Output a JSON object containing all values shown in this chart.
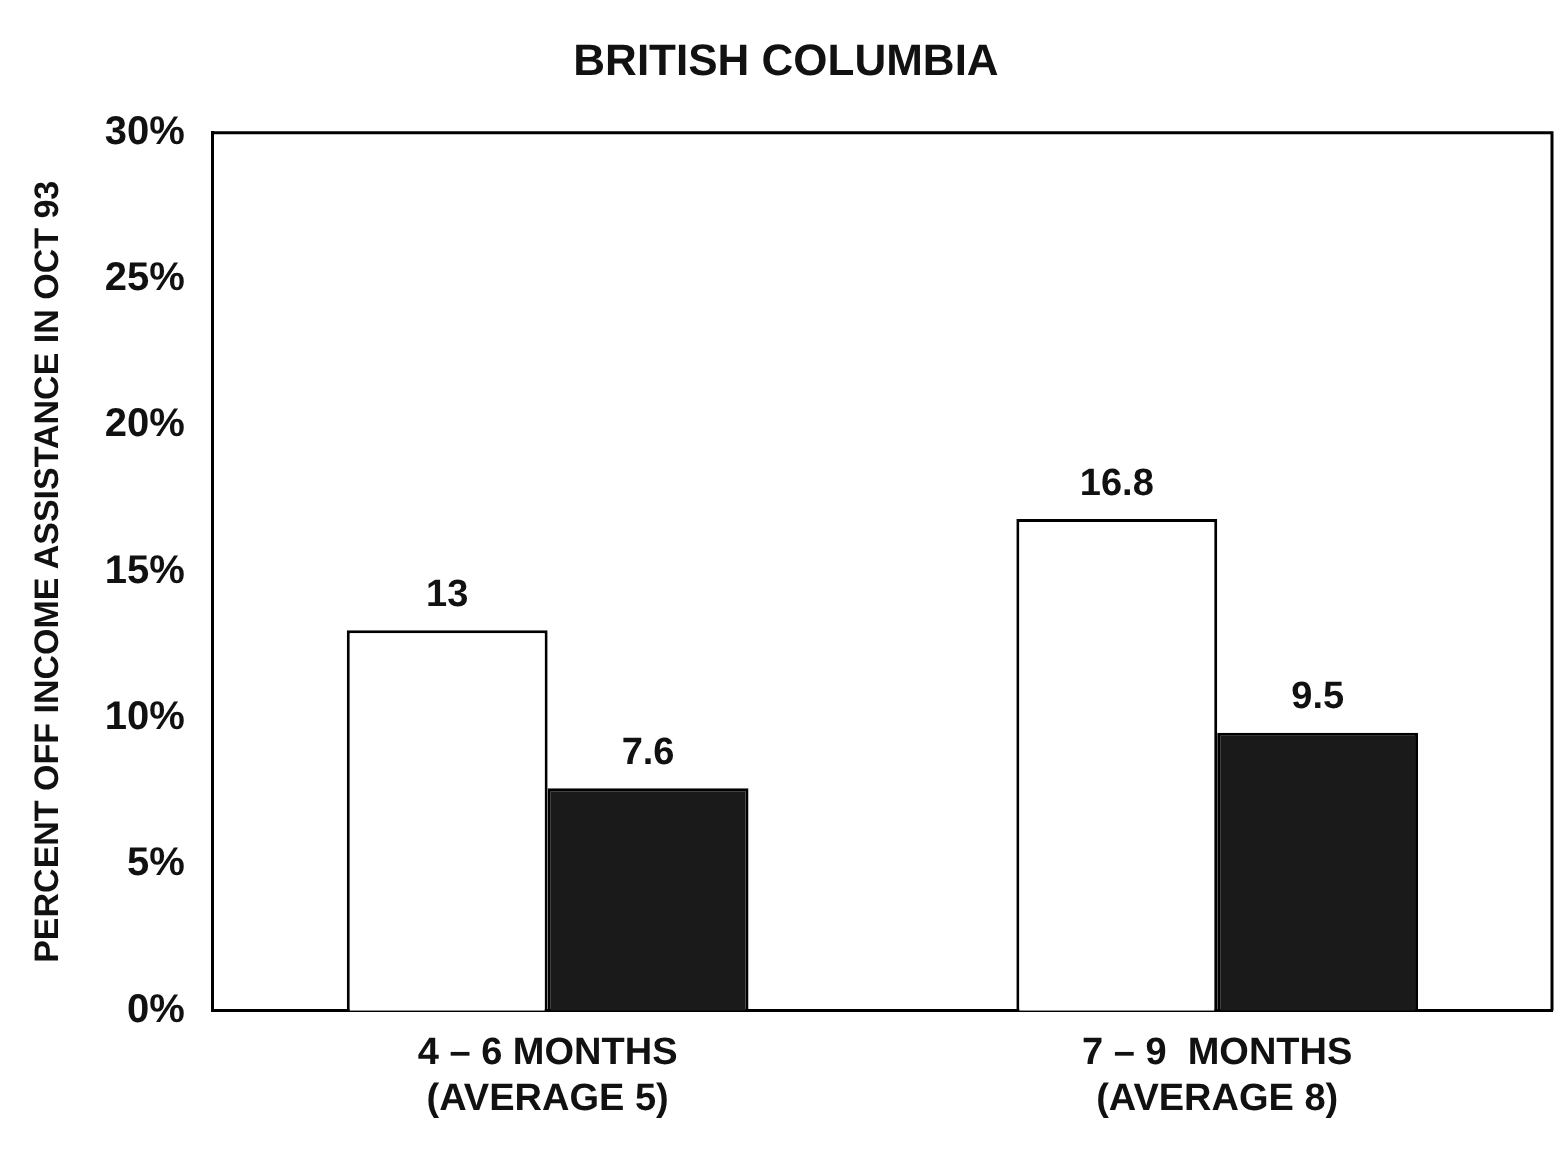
{
  "chart_data": {
    "type": "bar",
    "title": "BRITISH COLUMBIA",
    "ylabel": "PERCENT OFF INCOME ASSISTANCE IN OCT 93",
    "categories": [
      "4 – 6 MONTHS\n(AVERAGE 5)",
      "7 – 9  MONTHS\n(AVERAGE 8)"
    ],
    "series": [
      {
        "color": "#ffffff",
        "values": [
          13,
          16.8
        ]
      },
      {
        "color": "#1a1a1a",
        "values": [
          7.6,
          9.5
        ]
      }
    ],
    "ylim": [
      0,
      30
    ],
    "yticks": [
      {
        "value": 0,
        "label": "0%"
      },
      {
        "value": 5,
        "label": "5%"
      },
      {
        "value": 10,
        "label": "10%"
      },
      {
        "value": 15,
        "label": "15%"
      },
      {
        "value": 20,
        "label": "20%"
      },
      {
        "value": 25,
        "label": "25%"
      },
      {
        "value": 30,
        "label": "30%"
      }
    ],
    "grid": false,
    "legend": false,
    "data_labels": true
  }
}
